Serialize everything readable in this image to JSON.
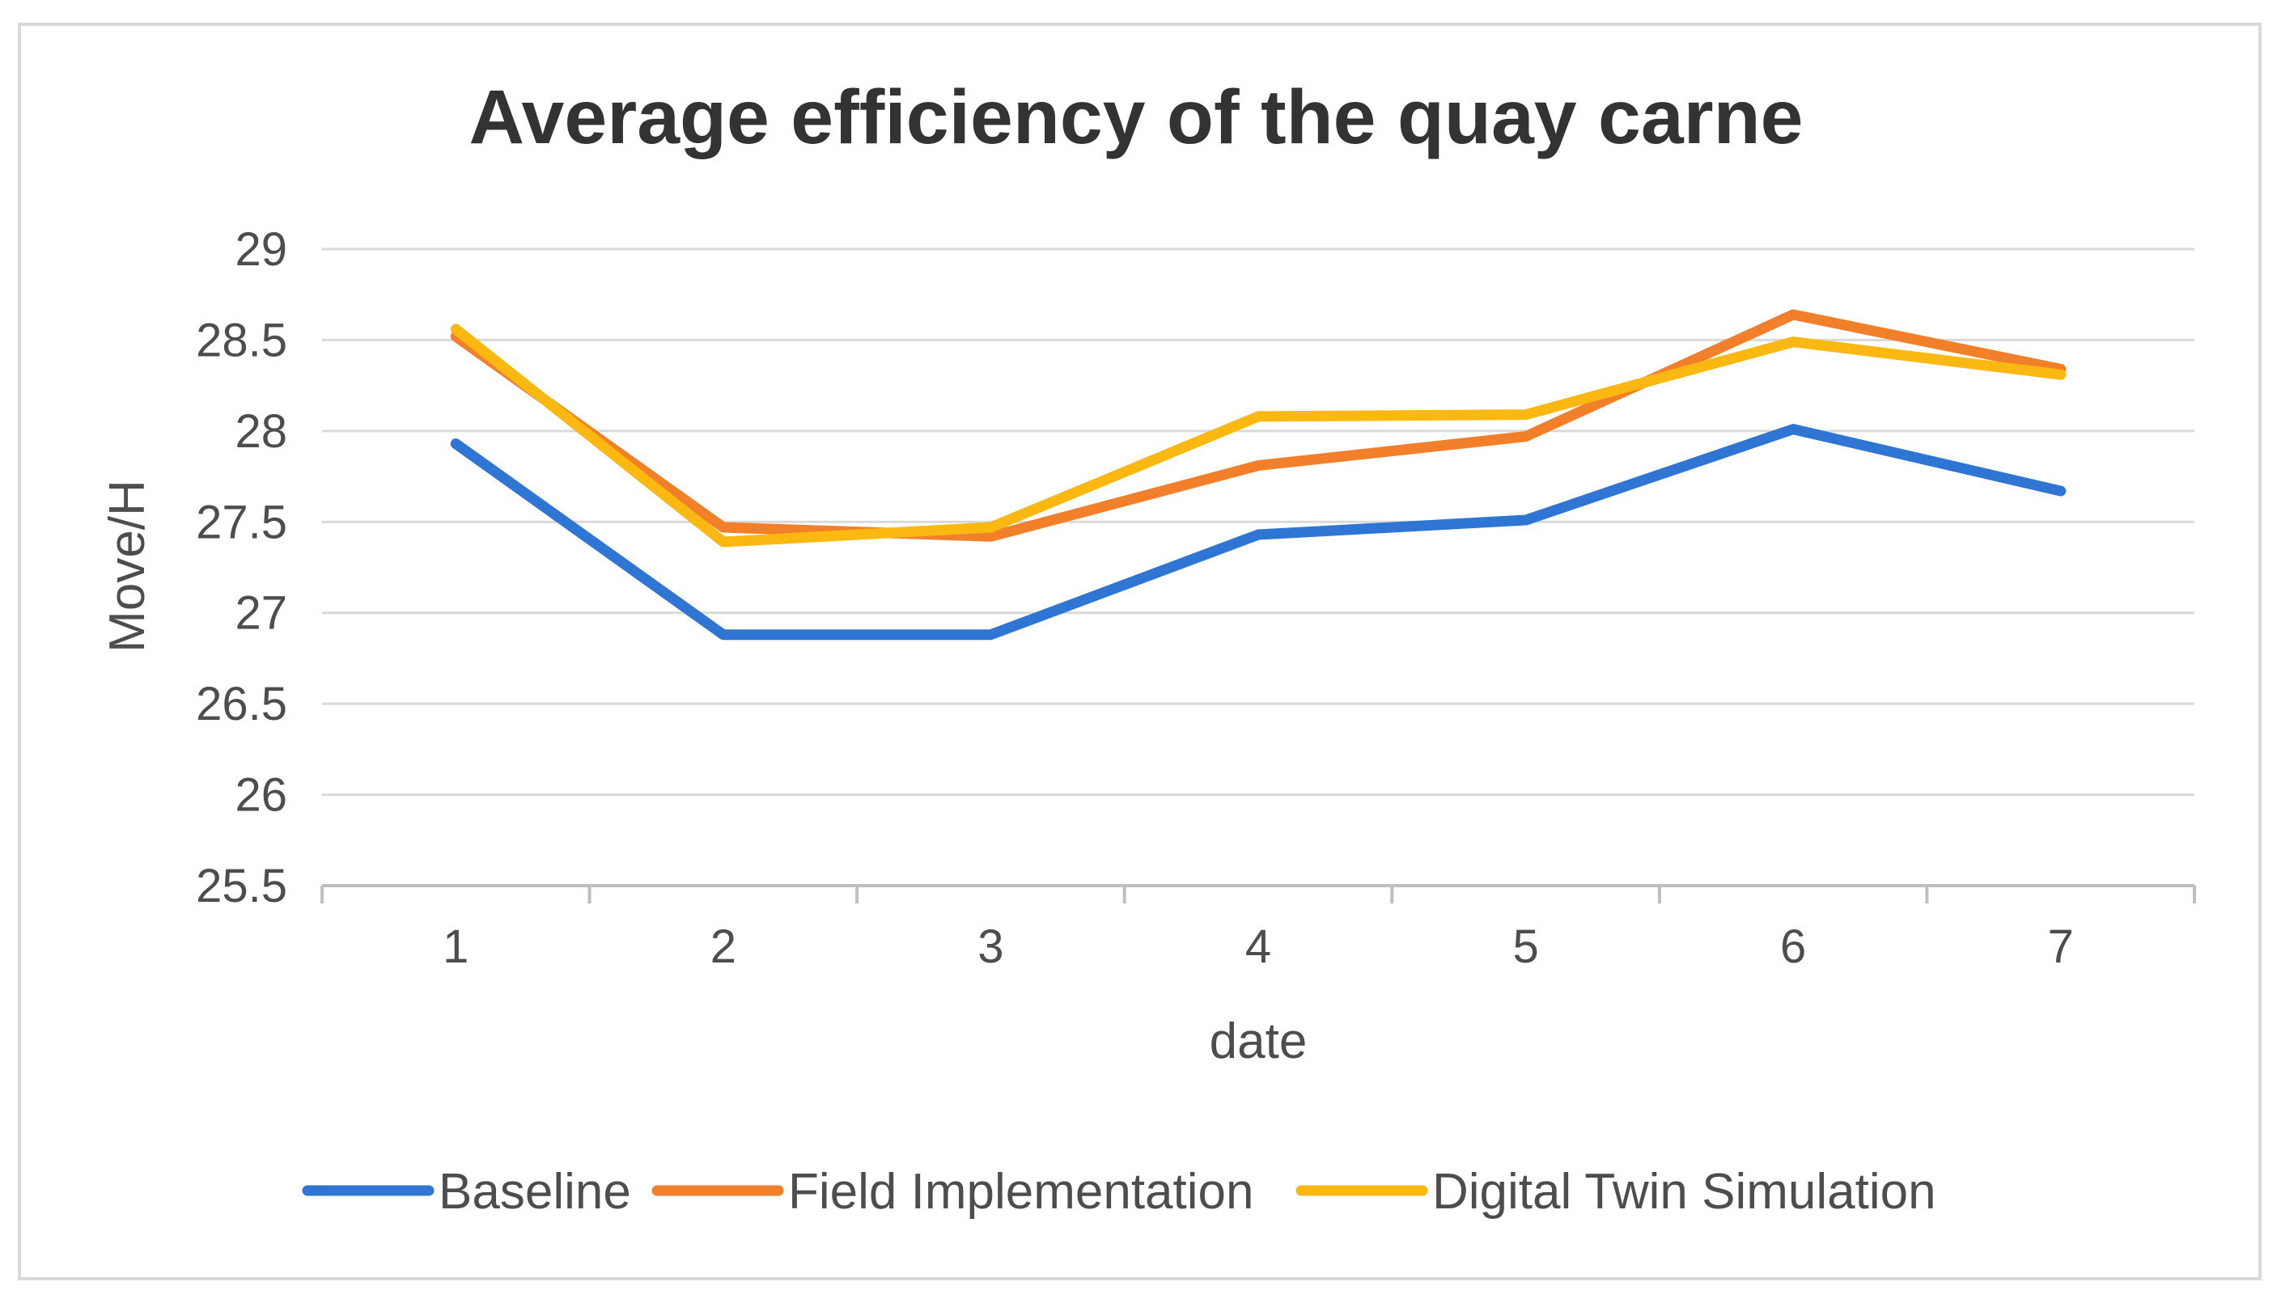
{
  "chart_data": {
    "type": "line",
    "title": "Average efficiency of the quay carne",
    "xlabel": "date",
    "ylabel": "Move/H",
    "categories": [
      "1",
      "2",
      "3",
      "4",
      "5",
      "6",
      "7"
    ],
    "ylim": [
      25.5,
      29
    ],
    "yticks": [
      "29",
      "28.5",
      "28",
      "27.5",
      "27",
      "26.5",
      "26",
      "25.5"
    ],
    "grid": true,
    "legend_position": "bottom",
    "series": [
      {
        "name": "Baseline",
        "color": "#2e75d4",
        "values": [
          27.93,
          26.88,
          26.88,
          27.43,
          27.51,
          28.01,
          27.67
        ]
      },
      {
        "name": "Field Implementation",
        "color": "#f27f2a",
        "values": [
          28.52,
          27.47,
          27.42,
          27.81,
          27.97,
          28.64,
          28.34
        ]
      },
      {
        "name": "Digital Twin Simulation",
        "color": "#fbb810",
        "values": [
          28.56,
          27.39,
          27.47,
          28.08,
          28.09,
          28.49,
          28.31
        ]
      }
    ]
  }
}
